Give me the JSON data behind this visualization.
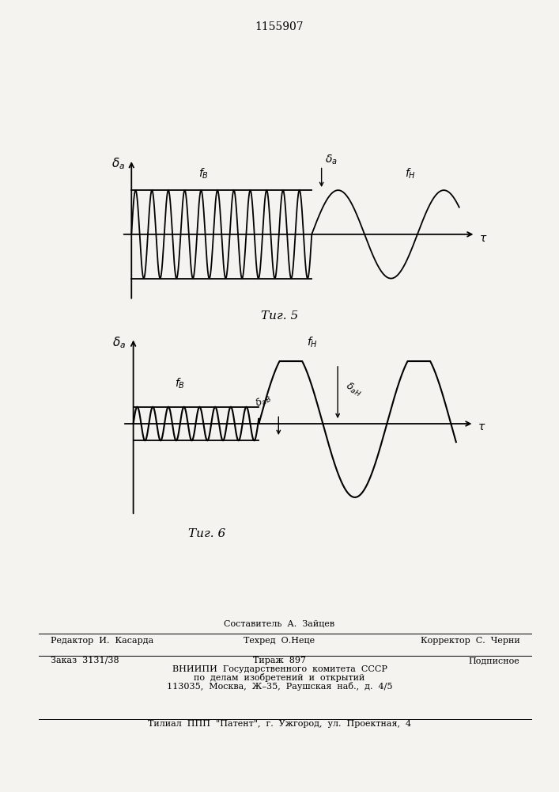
{
  "title": "1155907",
  "fig5_caption": "Τиг. 5",
  "fig6_caption": "Τиг. 6",
  "footer_line1": "Составитель  А.  Зайцев",
  "footer_line2_left": "Редактор  И.  Касарда",
  "footer_line2_mid": "Техред  О.Неце",
  "footer_line2_right": "Корректор  С.  Черни",
  "footer_line3_left": "Заказ  3131/38",
  "footer_line3_mid": "Тираж  897",
  "footer_line3_right": "Подписное",
  "footer_line4": "ВНИИПИ  Государственного  комитета  СССР",
  "footer_line5": "по  делам  изобретений  и  открытий",
  "footer_line6": "113035,  Москва,  Ж–35,  Раушская  наб.,  д.  4/5",
  "footer_last": "Τилиал  ППП  \"Патент\",  г.  Ужгород,  ул.  Проектная,  4",
  "bg_color": "#f5f3ef",
  "line_color": "#000000"
}
